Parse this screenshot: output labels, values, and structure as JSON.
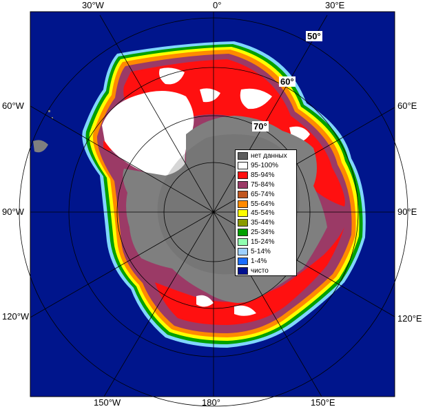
{
  "map": {
    "colors": {
      "ocean": "#00158c",
      "land": "#7f7f7f",
      "land_dark": "#5c5c5c",
      "ice_95_100": "#ffffff",
      "ice_85_94": "#ff1010",
      "ice_75_84": "#9b3a66",
      "ice_65_74": "#c0561f",
      "ice_55_64": "#ff8a00",
      "ice_45_54": "#ffff00",
      "ice_35_44": "#8a9a00",
      "ice_25_34": "#00a000",
      "ice_15_24": "#90ffb0",
      "ice_5_14": "#9ed0ff",
      "ice_1_4": "#1a6cff",
      "clear": "#001090"
    },
    "longitude_labels": {
      "top": [
        "30°W",
        "0°",
        "30°E"
      ],
      "left": [
        "60°W",
        "90°W",
        "120°W"
      ],
      "right": [
        "60°E",
        "90°E",
        "120°E"
      ],
      "bottom": [
        "150°W",
        "180°",
        "150°E"
      ]
    },
    "latitude_labels": [
      "50°",
      "60°",
      "70°"
    ]
  },
  "legend": {
    "entries": [
      {
        "label": "нет данных",
        "color": "#5c5c5c"
      },
      {
        "label": "95-100%",
        "color": "#ffffff"
      },
      {
        "label": "85-94%",
        "color": "#ff1010"
      },
      {
        "label": "75-84%",
        "color": "#9b3a66"
      },
      {
        "label": "65-74%",
        "color": "#c0561f"
      },
      {
        "label": "55-64%",
        "color": "#ff8a00"
      },
      {
        "label": "45-54%",
        "color": "#ffff00"
      },
      {
        "label": "35-44%",
        "color": "#8a9a00"
      },
      {
        "label": "25-34%",
        "color": "#00a000"
      },
      {
        "label": "15-24%",
        "color": "#90ffb0"
      },
      {
        "label": "5-14%",
        "color": "#9ed0ff"
      },
      {
        "label": "1-4%",
        "color": "#1a6cff"
      },
      {
        "label": "чисто",
        "color": "#001090"
      }
    ]
  }
}
